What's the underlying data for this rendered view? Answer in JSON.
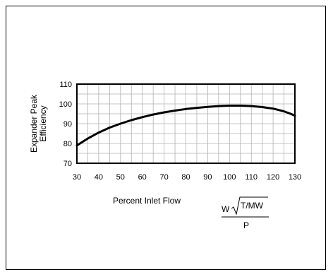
{
  "chart_data": {
    "type": "line",
    "title": "",
    "xlabel": "Percent Inlet Flow",
    "ylabel_lines": [
      "Expander Peak",
      "Efficiency"
    ],
    "xlim": [
      30,
      130
    ],
    "ylim": [
      70,
      110
    ],
    "x_ticks": [
      30,
      40,
      50,
      60,
      70,
      80,
      90,
      100,
      110,
      120,
      130
    ],
    "y_ticks": [
      70,
      80,
      90,
      100,
      110
    ],
    "grid": true,
    "series": [
      {
        "x": [
          30,
          35,
          40,
          45,
          50,
          55,
          60,
          65,
          70,
          75,
          80,
          85,
          90,
          95,
          100,
          105,
          110,
          115,
          120,
          125,
          128,
          130
        ],
        "y": [
          79,
          82.5,
          85.5,
          88,
          90,
          91.8,
          93.3,
          94.6,
          95.7,
          96.6,
          97.4,
          98.0,
          98.5,
          98.9,
          99.1,
          99.1,
          98.9,
          98.4,
          97.6,
          96.2,
          95.0,
          94.0
        ]
      }
    ],
    "formula": {
      "numerator_prefix": "W",
      "radicand": "T/MW",
      "denominator": "P"
    }
  },
  "colors": {
    "line": "#000000",
    "grid": "#b0b0b0",
    "axis": "#000000"
  }
}
